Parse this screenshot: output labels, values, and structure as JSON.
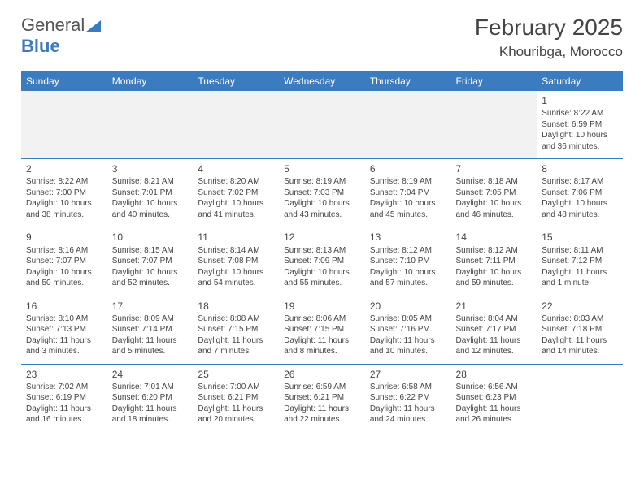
{
  "logo": {
    "part1": "General",
    "part2": "Blue"
  },
  "title": "February 2025",
  "location": "Khouribga, Morocco",
  "colors": {
    "header_bg": "#3b7bbf",
    "header_text": "#ffffff",
    "cell_border": "#3b7bbf",
    "empty_bg": "#f2f2f2",
    "text": "#444444",
    "page_bg": "#ffffff"
  },
  "weekdays": [
    "Sunday",
    "Monday",
    "Tuesday",
    "Wednesday",
    "Thursday",
    "Friday",
    "Saturday"
  ],
  "weeks": [
    [
      null,
      null,
      null,
      null,
      null,
      null,
      {
        "n": "1",
        "sr": "Sunrise: 8:22 AM",
        "ss": "Sunset: 6:59 PM",
        "d1": "Daylight: 10 hours",
        "d2": "and 36 minutes."
      }
    ],
    [
      {
        "n": "2",
        "sr": "Sunrise: 8:22 AM",
        "ss": "Sunset: 7:00 PM",
        "d1": "Daylight: 10 hours",
        "d2": "and 38 minutes."
      },
      {
        "n": "3",
        "sr": "Sunrise: 8:21 AM",
        "ss": "Sunset: 7:01 PM",
        "d1": "Daylight: 10 hours",
        "d2": "and 40 minutes."
      },
      {
        "n": "4",
        "sr": "Sunrise: 8:20 AM",
        "ss": "Sunset: 7:02 PM",
        "d1": "Daylight: 10 hours",
        "d2": "and 41 minutes."
      },
      {
        "n": "5",
        "sr": "Sunrise: 8:19 AM",
        "ss": "Sunset: 7:03 PM",
        "d1": "Daylight: 10 hours",
        "d2": "and 43 minutes."
      },
      {
        "n": "6",
        "sr": "Sunrise: 8:19 AM",
        "ss": "Sunset: 7:04 PM",
        "d1": "Daylight: 10 hours",
        "d2": "and 45 minutes."
      },
      {
        "n": "7",
        "sr": "Sunrise: 8:18 AM",
        "ss": "Sunset: 7:05 PM",
        "d1": "Daylight: 10 hours",
        "d2": "and 46 minutes."
      },
      {
        "n": "8",
        "sr": "Sunrise: 8:17 AM",
        "ss": "Sunset: 7:06 PM",
        "d1": "Daylight: 10 hours",
        "d2": "and 48 minutes."
      }
    ],
    [
      {
        "n": "9",
        "sr": "Sunrise: 8:16 AM",
        "ss": "Sunset: 7:07 PM",
        "d1": "Daylight: 10 hours",
        "d2": "and 50 minutes."
      },
      {
        "n": "10",
        "sr": "Sunrise: 8:15 AM",
        "ss": "Sunset: 7:07 PM",
        "d1": "Daylight: 10 hours",
        "d2": "and 52 minutes."
      },
      {
        "n": "11",
        "sr": "Sunrise: 8:14 AM",
        "ss": "Sunset: 7:08 PM",
        "d1": "Daylight: 10 hours",
        "d2": "and 54 minutes."
      },
      {
        "n": "12",
        "sr": "Sunrise: 8:13 AM",
        "ss": "Sunset: 7:09 PM",
        "d1": "Daylight: 10 hours",
        "d2": "and 55 minutes."
      },
      {
        "n": "13",
        "sr": "Sunrise: 8:12 AM",
        "ss": "Sunset: 7:10 PM",
        "d1": "Daylight: 10 hours",
        "d2": "and 57 minutes."
      },
      {
        "n": "14",
        "sr": "Sunrise: 8:12 AM",
        "ss": "Sunset: 7:11 PM",
        "d1": "Daylight: 10 hours",
        "d2": "and 59 minutes."
      },
      {
        "n": "15",
        "sr": "Sunrise: 8:11 AM",
        "ss": "Sunset: 7:12 PM",
        "d1": "Daylight: 11 hours",
        "d2": "and 1 minute."
      }
    ],
    [
      {
        "n": "16",
        "sr": "Sunrise: 8:10 AM",
        "ss": "Sunset: 7:13 PM",
        "d1": "Daylight: 11 hours",
        "d2": "and 3 minutes."
      },
      {
        "n": "17",
        "sr": "Sunrise: 8:09 AM",
        "ss": "Sunset: 7:14 PM",
        "d1": "Daylight: 11 hours",
        "d2": "and 5 minutes."
      },
      {
        "n": "18",
        "sr": "Sunrise: 8:08 AM",
        "ss": "Sunset: 7:15 PM",
        "d1": "Daylight: 11 hours",
        "d2": "and 7 minutes."
      },
      {
        "n": "19",
        "sr": "Sunrise: 8:06 AM",
        "ss": "Sunset: 7:15 PM",
        "d1": "Daylight: 11 hours",
        "d2": "and 8 minutes."
      },
      {
        "n": "20",
        "sr": "Sunrise: 8:05 AM",
        "ss": "Sunset: 7:16 PM",
        "d1": "Daylight: 11 hours",
        "d2": "and 10 minutes."
      },
      {
        "n": "21",
        "sr": "Sunrise: 8:04 AM",
        "ss": "Sunset: 7:17 PM",
        "d1": "Daylight: 11 hours",
        "d2": "and 12 minutes."
      },
      {
        "n": "22",
        "sr": "Sunrise: 8:03 AM",
        "ss": "Sunset: 7:18 PM",
        "d1": "Daylight: 11 hours",
        "d2": "and 14 minutes."
      }
    ],
    [
      {
        "n": "23",
        "sr": "Sunrise: 7:02 AM",
        "ss": "Sunset: 6:19 PM",
        "d1": "Daylight: 11 hours",
        "d2": "and 16 minutes."
      },
      {
        "n": "24",
        "sr": "Sunrise: 7:01 AM",
        "ss": "Sunset: 6:20 PM",
        "d1": "Daylight: 11 hours",
        "d2": "and 18 minutes."
      },
      {
        "n": "25",
        "sr": "Sunrise: 7:00 AM",
        "ss": "Sunset: 6:21 PM",
        "d1": "Daylight: 11 hours",
        "d2": "and 20 minutes."
      },
      {
        "n": "26",
        "sr": "Sunrise: 6:59 AM",
        "ss": "Sunset: 6:21 PM",
        "d1": "Daylight: 11 hours",
        "d2": "and 22 minutes."
      },
      {
        "n": "27",
        "sr": "Sunrise: 6:58 AM",
        "ss": "Sunset: 6:22 PM",
        "d1": "Daylight: 11 hours",
        "d2": "and 24 minutes."
      },
      {
        "n": "28",
        "sr": "Sunrise: 6:56 AM",
        "ss": "Sunset: 6:23 PM",
        "d1": "Daylight: 11 hours",
        "d2": "and 26 minutes."
      },
      null
    ]
  ]
}
